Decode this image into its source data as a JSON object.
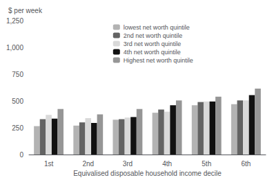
{
  "chart_data": {
    "type": "bar",
    "ylabel": "$ per week",
    "xlabel": "Equivalised disposable household income decile",
    "categories": [
      "1st",
      "2nd",
      "3rd",
      "4th",
      "5th",
      "6th"
    ],
    "series": [
      {
        "name": "lowest net worth quintile",
        "color": "#b3b3b3",
        "values": [
          265,
          270,
          325,
          390,
          460,
          470
        ]
      },
      {
        "name": "2nd net worth quintile",
        "color": "#636363",
        "values": [
          330,
          300,
          330,
          420,
          490,
          505
        ]
      },
      {
        "name": "3rd net worth quintile",
        "color": "#d9d9d9",
        "values": [
          370,
          340,
          345,
          400,
          495,
          505
        ]
      },
      {
        "name": "4th net worth quintile",
        "color": "#111111",
        "values": [
          335,
          295,
          350,
          460,
          495,
          555
        ]
      },
      {
        "name": "Highest net worth quintile",
        "color": "#969696",
        "values": [
          425,
          375,
          425,
          505,
          540,
          615
        ]
      }
    ],
    "ylim": [
      0,
      1250
    ],
    "yticks": [
      0,
      250,
      500,
      750,
      1000,
      1250
    ],
    "grid": false,
    "legend": "upper center"
  }
}
